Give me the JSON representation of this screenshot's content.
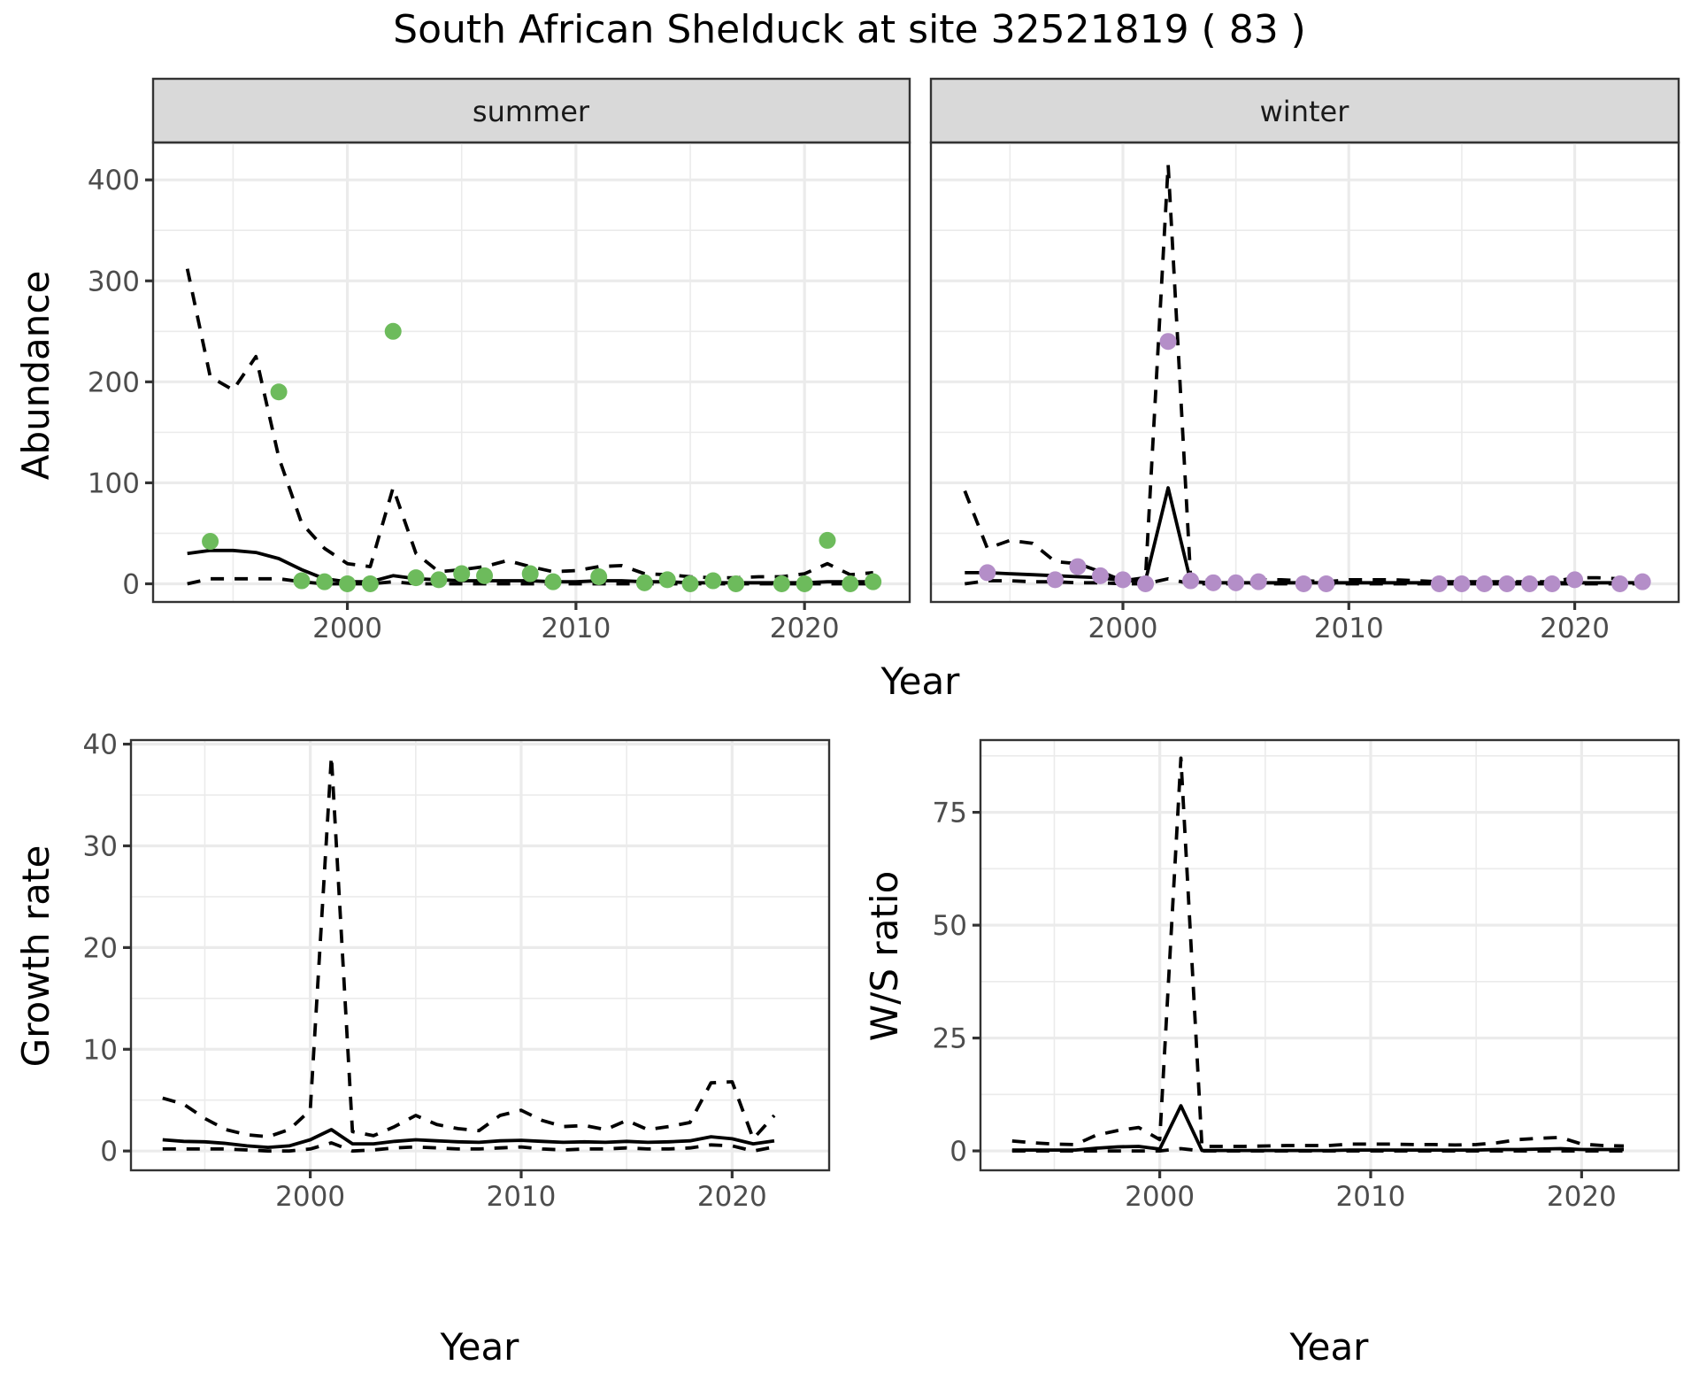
{
  "title": "South African Shelduck at site 32521819 ( 83 )",
  "colors": {
    "summer_points": "#6dbb5c",
    "winter_points": "#b48ec8",
    "lines": "#000000",
    "strip_fill": "#d9d9d9",
    "grid": "#ebebeb"
  },
  "chart_data": [
    {
      "id": "abundance",
      "type": "line",
      "facets": [
        "summer",
        "winter"
      ],
      "xlabel": "Year",
      "ylabel": "Abundance",
      "xlim": [
        1991.5,
        2024.6
      ],
      "ylim": [
        -18,
        437
      ],
      "xticks": [
        2000,
        2010,
        2020
      ],
      "xtick_labels": [
        "2000",
        "2010",
        "2020"
      ],
      "yticks": [
        0,
        100,
        200,
        300,
        400
      ],
      "ytick_labels": [
        "0",
        "100",
        "200",
        "300",
        "400"
      ],
      "grid": true,
      "panels": [
        {
          "facet": "summer",
          "point_color": "#6dbb5c",
          "points": {
            "x": [
              1994,
              1997,
              1998,
              1999,
              2000,
              2001,
              2002,
              2003,
              2004,
              2005,
              2006,
              2008,
              2009,
              2011,
              2013,
              2014,
              2015,
              2016,
              2017,
              2019,
              2020,
              2021,
              2022,
              2023
            ],
            "y": [
              42,
              190,
              3,
              2,
              0,
              0,
              250,
              6,
              4,
              10,
              8,
              10,
              2,
              7,
              1,
              4,
              0,
              3,
              0,
              0,
              0,
              43,
              0,
              2
            ]
          },
          "x": [
            1993,
            1994,
            1995,
            1996,
            1997,
            1998,
            1999,
            2000,
            2001,
            2002,
            2003,
            2004,
            2005,
            2006,
            2007,
            2008,
            2009,
            2010,
            2011,
            2012,
            2013,
            2014,
            2015,
            2016,
            2017,
            2018,
            2019,
            2020,
            2021,
            2022,
            2023
          ],
          "series": [
            {
              "name": "mean",
              "style": "solid",
              "values": [
                30,
                33,
                33,
                31,
                25,
                14,
                5,
                2,
                2,
                8,
                5,
                4,
                3,
                3,
                3,
                3,
                2,
                2,
                3,
                3,
                2,
                2,
                1,
                1,
                1,
                1,
                1,
                1,
                2,
                2,
                2
              ]
            },
            {
              "name": "upper",
              "style": "dashed",
              "values": [
                312,
                205,
                192,
                225,
                125,
                60,
                35,
                20,
                17,
                95,
                30,
                12,
                14,
                17,
                23,
                17,
                12,
                13,
                17,
                18,
                10,
                9,
                7,
                6,
                6,
                7,
                7,
                10,
                20,
                9,
                11
              ]
            },
            {
              "name": "lower",
              "style": "dashed",
              "values": [
                0,
                5,
                5,
                5,
                5,
                2,
                0,
                0,
                0,
                2,
                0,
                0,
                0,
                0,
                0,
                0,
                0,
                0,
                0,
                0,
                0,
                0,
                0,
                0,
                0,
                0,
                0,
                0,
                0,
                0,
                0
              ]
            }
          ]
        },
        {
          "facet": "winter",
          "point_color": "#b48ec8",
          "points": {
            "x": [
              1994,
              1997,
              1998,
              1999,
              2000,
              2001,
              2002,
              2003,
              2004,
              2005,
              2006,
              2008,
              2009,
              2014,
              2015,
              2016,
              2017,
              2018,
              2019,
              2020,
              2022,
              2023
            ],
            "y": [
              11,
              4,
              17,
              8,
              4,
              0,
              240,
              3,
              1,
              1,
              2,
              0,
              0,
              0,
              0,
              0,
              0,
              0,
              0,
              4,
              0,
              2
            ]
          },
          "x": [
            1993,
            1994,
            1995,
            1996,
            1997,
            1998,
            1999,
            2000,
            2001,
            2002,
            2003,
            2004,
            2005,
            2006,
            2007,
            2008,
            2009,
            2010,
            2011,
            2012,
            2013,
            2014,
            2015,
            2016,
            2017,
            2018,
            2019,
            2020,
            2021,
            2022,
            2023
          ],
          "series": [
            {
              "name": "mean",
              "style": "solid",
              "values": [
                11,
                11,
                10,
                9,
                8,
                7,
                6,
                3,
                3,
                95,
                2,
                1,
                1,
                1,
                1,
                1,
                1,
                1,
                1,
                1,
                1,
                1,
                1,
                1,
                1,
                1,
                1,
                1,
                1,
                1,
                1
              ]
            },
            {
              "name": "upper",
              "style": "dashed",
              "values": [
                92,
                35,
                43,
                40,
                22,
                20,
                12,
                3,
                6,
                415,
                4,
                3,
                3,
                4,
                4,
                3,
                2,
                4,
                4,
                4,
                3,
                2,
                2,
                2,
                2,
                2,
                2,
                6,
                6,
                5,
                3
              ]
            },
            {
              "name": "lower",
              "style": "dashed",
              "values": [
                0,
                3,
                3,
                2,
                2,
                1,
                1,
                0,
                0,
                5,
                0,
                0,
                0,
                0,
                0,
                0,
                0,
                0,
                0,
                0,
                0,
                0,
                0,
                0,
                0,
                0,
                0,
                0,
                0,
                0,
                0
              ]
            }
          ]
        }
      ]
    },
    {
      "id": "growth",
      "type": "line",
      "xlabel": "Year",
      "ylabel": "Growth rate",
      "xlim": [
        1991.5,
        2024.6
      ],
      "ylim": [
        -1.9,
        40.4
      ],
      "xticks": [
        2000,
        2010,
        2020
      ],
      "xtick_labels": [
        "2000",
        "2010",
        "2020"
      ],
      "yticks": [
        0,
        10,
        20,
        30,
        40
      ],
      "ytick_labels": [
        "0",
        "10",
        "20",
        "30",
        "40"
      ],
      "grid": true,
      "x": [
        1993,
        1994,
        1995,
        1996,
        1997,
        1998,
        1999,
        2000,
        2001,
        2002,
        2003,
        2004,
        2005,
        2006,
        2007,
        2008,
        2009,
        2010,
        2011,
        2012,
        2013,
        2014,
        2015,
        2016,
        2017,
        2018,
        2019,
        2020,
        2021,
        2022
      ],
      "series": [
        {
          "name": "mean",
          "style": "solid",
          "values": [
            1.1,
            0.95,
            0.9,
            0.75,
            0.5,
            0.35,
            0.5,
            1.1,
            2.1,
            0.7,
            0.7,
            0.95,
            1.1,
            1.0,
            0.9,
            0.85,
            1.0,
            1.05,
            0.95,
            0.85,
            0.9,
            0.85,
            0.95,
            0.85,
            0.9,
            1.0,
            1.4,
            1.2,
            0.7,
            1.0
          ]
        },
        {
          "name": "upper",
          "style": "dashed",
          "values": [
            5.2,
            4.6,
            3.2,
            2.1,
            1.6,
            1.4,
            2.1,
            4.0,
            38.8,
            1.9,
            1.5,
            2.4,
            3.5,
            2.6,
            2.2,
            2.0,
            3.5,
            4.0,
            3.0,
            2.4,
            2.5,
            2.1,
            3.0,
            2.1,
            2.4,
            2.8,
            6.7,
            6.8,
            1.2,
            3.5
          ]
        },
        {
          "name": "lower",
          "style": "dashed",
          "values": [
            0.2,
            0.2,
            0.2,
            0.2,
            0.1,
            0.0,
            0.0,
            0.2,
            0.8,
            0.0,
            0.1,
            0.3,
            0.4,
            0.3,
            0.2,
            0.2,
            0.3,
            0.4,
            0.2,
            0.1,
            0.2,
            0.2,
            0.3,
            0.2,
            0.2,
            0.3,
            0.6,
            0.5,
            0.0,
            0.4
          ]
        }
      ]
    },
    {
      "id": "ws_ratio",
      "type": "line",
      "xlabel": "Year",
      "ylabel": "W/S ratio",
      "xlim": [
        1991.5,
        2024.6
      ],
      "ylim": [
        -4.3,
        91
      ],
      "xticks": [
        2000,
        2010,
        2020
      ],
      "xtick_labels": [
        "2000",
        "2010",
        "2020"
      ],
      "yticks": [
        0,
        25,
        50,
        75
      ],
      "ytick_labels": [
        "0",
        "25",
        "50",
        "75"
      ],
      "grid": true,
      "x": [
        1993,
        1994,
        1995,
        1996,
        1997,
        1998,
        1999,
        2000,
        2001,
        2002,
        2003,
        2004,
        2005,
        2006,
        2007,
        2008,
        2009,
        2010,
        2011,
        2012,
        2013,
        2014,
        2015,
        2016,
        2017,
        2018,
        2019,
        2020,
        2021,
        2022
      ],
      "series": [
        {
          "name": "mean",
          "style": "solid",
          "values": [
            0.2,
            0.2,
            0.2,
            0.2,
            0.6,
            0.9,
            1.0,
            0.4,
            10.0,
            0.1,
            0.1,
            0.1,
            0.1,
            0.1,
            0.1,
            0.1,
            0.2,
            0.2,
            0.2,
            0.2,
            0.2,
            0.2,
            0.2,
            0.3,
            0.3,
            0.4,
            0.5,
            0.3,
            0.3,
            0.3
          ]
        },
        {
          "name": "upper",
          "style": "dashed",
          "values": [
            2.2,
            1.8,
            1.5,
            1.4,
            3.5,
            4.5,
            5.2,
            2.5,
            87.0,
            1.0,
            1.0,
            1.0,
            1.1,
            1.2,
            1.2,
            1.2,
            1.5,
            1.5,
            1.5,
            1.4,
            1.4,
            1.3,
            1.4,
            1.8,
            2.5,
            2.8,
            3.0,
            1.5,
            1.2,
            1.1
          ]
        },
        {
          "name": "lower",
          "style": "dashed",
          "values": [
            0,
            0,
            0,
            0,
            0,
            0,
            0,
            0,
            0.5,
            0,
            0,
            0,
            0,
            0,
            0,
            0,
            0,
            0,
            0,
            0,
            0,
            0,
            0,
            0,
            0,
            0,
            0,
            0,
            0,
            0
          ]
        }
      ]
    }
  ]
}
